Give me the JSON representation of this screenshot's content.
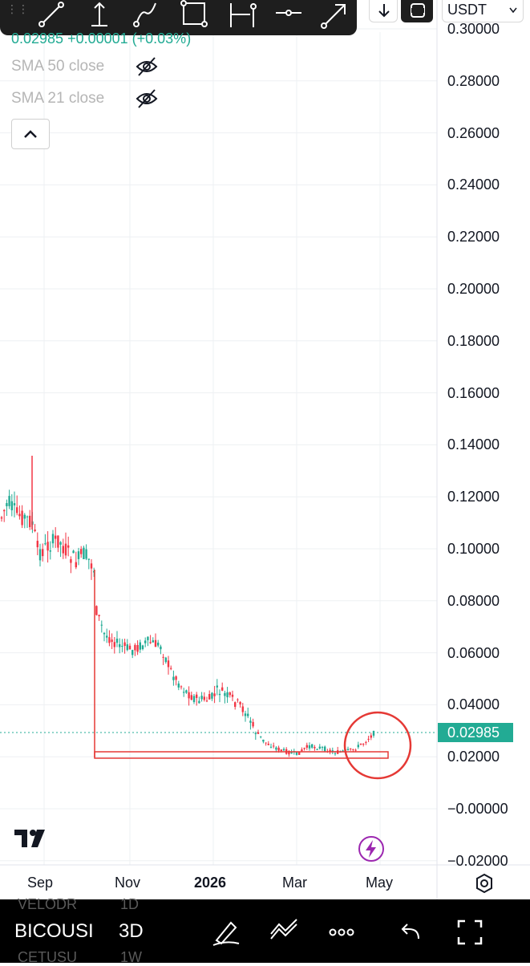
{
  "toolbar": {
    "tools": [
      "trend-line-icon",
      "vertical-measure-icon",
      "path-icon",
      "rectangle-icon",
      "date-range-icon",
      "horizontal-line-icon",
      "arrow-icon"
    ],
    "currency": "USDT"
  },
  "legend": {
    "price_change": "0.02985 +0.00001 (+0.03%)",
    "indicators": [
      {
        "label": "SMA 50 close",
        "icon": "eye-off-icon"
      },
      {
        "label": "SMA 21 close",
        "icon": "eye-off-icon"
      }
    ]
  },
  "price_axis": {
    "labels": [
      "0.30000",
      "0.28000",
      "0.26000",
      "0.24000",
      "0.22000",
      "0.20000",
      "0.18000",
      "0.16000",
      "0.14000",
      "0.12000",
      "0.10000",
      "0.08000",
      "0.06000",
      "0.04000",
      "0.02000",
      "−0.00000",
      "−0.02000"
    ],
    "current_price": "0.02985"
  },
  "time_axis": {
    "labels": [
      {
        "text": "Sep",
        "bold": false
      },
      {
        "text": "Nov",
        "bold": false
      },
      {
        "text": "2026",
        "bold": true
      },
      {
        "text": "Mar",
        "bold": false
      },
      {
        "text": "May",
        "bold": false
      }
    ]
  },
  "bottom_bar": {
    "symbol": "BICOUSI",
    "mode": "3D",
    "ghost_rows": [
      {
        "symbol": "VELODR",
        "interval": "1D"
      },
      {
        "symbol": "CETUSU",
        "interval": "1W"
      }
    ],
    "icons": [
      "brush-icon",
      "chart-style-icon",
      "more-icon",
      "undo-icon",
      "fullscreen-icon"
    ]
  },
  "colors": {
    "up": "#22ab94",
    "down": "#f23645",
    "drawing": "#e53935",
    "toolbar_bg": "#1e1e1e"
  },
  "chart_data": {
    "type": "candlestick",
    "y_range": [
      -0.02,
      0.3
    ],
    "x_ticks": [
      "Sep",
      "Nov",
      "2026",
      "Mar",
      "May"
    ],
    "last_price": 0.02985,
    "series": [
      {
        "name": "",
        "approx_close_path": [
          [
            "Aug",
            0.11
          ],
          [
            "Sep",
            0.105
          ],
          [
            "Oct",
            0.095
          ],
          [
            "Oct",
            0.065
          ],
          [
            "Nov",
            0.062
          ],
          [
            "Dec",
            0.045
          ],
          [
            "2026",
            0.043
          ],
          [
            "Jan",
            0.05
          ],
          [
            "Feb",
            0.024
          ],
          [
            "Mar",
            0.02
          ],
          [
            "Apr",
            0.021
          ],
          [
            "May",
            0.03
          ]
        ]
      }
    ],
    "annotations": [
      "support-rectangle",
      "highlight-circle"
    ]
  }
}
